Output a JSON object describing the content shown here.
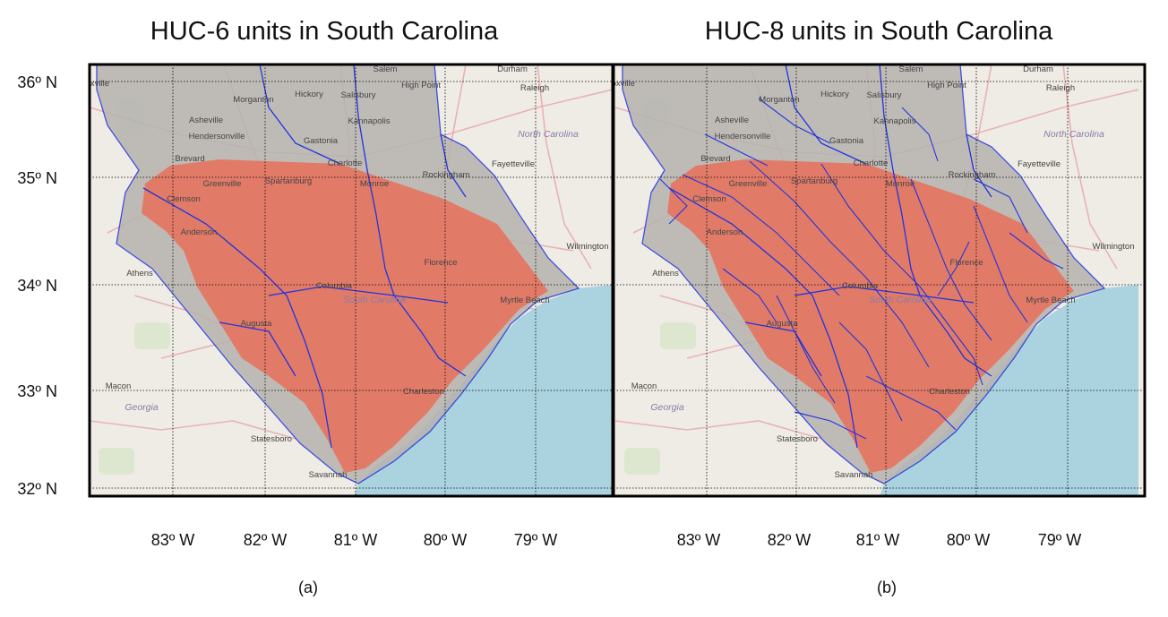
{
  "panels": [
    {
      "title": "HUC-6 units in South Carolina",
      "caption": "(a)",
      "unit_level": "HUC-6"
    },
    {
      "title": "HUC-8 units in South Carolina",
      "caption": "(b)",
      "unit_level": "HUC-8"
    }
  ],
  "axes": {
    "lon_ticks": [
      "83º W",
      "82º W",
      "81º W",
      "80º W",
      "79º W"
    ],
    "lat_ticks": [
      "36º N",
      "35º N",
      "34º N",
      "33º N",
      "32º N"
    ]
  },
  "place_labels": [
    "Knoxville",
    "Salem",
    "Durham",
    "Raleigh",
    "Hickory",
    "High Point",
    "Morganton",
    "Asheville",
    "Salisbury",
    "Kannapolis",
    "Hendersonville",
    "Gastonia",
    "North Carolina",
    "Brevard",
    "Charlotte",
    "Fayetteville",
    "Greenville",
    "Spartanburg",
    "Monroe",
    "Rockingham",
    "Clemson",
    "Anderson",
    "Wilmington",
    "Athens",
    "Florence",
    "Columbia",
    "Myrtle Beach",
    "South Carolina",
    "Augusta",
    "Macon",
    "Charleston",
    "Georgia",
    "Statesboro",
    "Savannah"
  ],
  "colors": {
    "land": "#efece5",
    "water": "#aad3df",
    "watershed_gray": "#b6b3b0",
    "sc_highlight": "#e8705a",
    "boundary": "#2233dd",
    "road": "#e9a3a9",
    "grid": "#000000"
  }
}
